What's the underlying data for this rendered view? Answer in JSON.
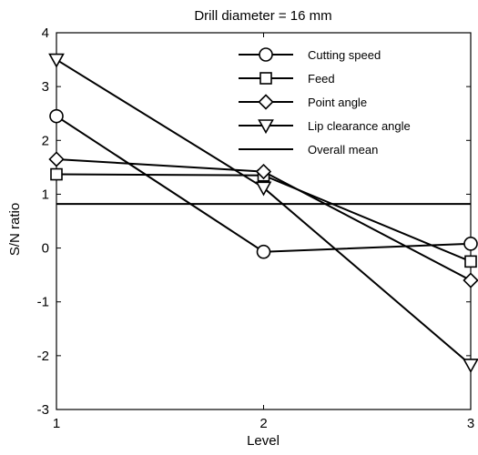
{
  "chart_data": {
    "type": "line",
    "title": "Drill diameter = 16 mm",
    "xlabel": "Level",
    "ylabel": "S/N ratio",
    "x": [
      1,
      2,
      3
    ],
    "xlim": [
      1,
      3
    ],
    "ylim": [
      -3,
      4
    ],
    "xticks": [
      "1",
      "2",
      "3"
    ],
    "yticks": [
      "-3",
      "-2",
      "-1",
      "0",
      "1",
      "2",
      "3",
      "4"
    ],
    "grid": false,
    "legend_position": "top-right",
    "series": [
      {
        "name": "Cutting speed",
        "marker": "circle",
        "values": [
          2.45,
          -0.07,
          0.08
        ]
      },
      {
        "name": "Feed",
        "marker": "square",
        "values": [
          1.37,
          1.35,
          -0.25
        ]
      },
      {
        "name": "Point angle",
        "marker": "diamond",
        "values": [
          1.65,
          1.42,
          -0.6
        ]
      },
      {
        "name": "Lip clearance angle",
        "marker": "triangle-down",
        "values": [
          3.5,
          1.12,
          -2.17
        ]
      }
    ],
    "reference_lines": [
      {
        "name": "Overall mean",
        "y": 0.82
      }
    ],
    "colors": {
      "line": "#000000",
      "background": "#ffffff"
    }
  }
}
